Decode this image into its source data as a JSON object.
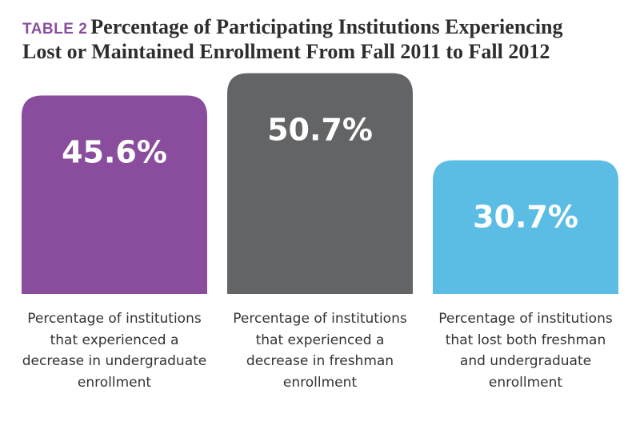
{
  "header": {
    "tag": "TABLE 2",
    "title_line1": "Percentage of Participating Institutions Experiencing",
    "title_line2": "Lost or Maintained Enrollment From Fall 2011 to Fall 2012"
  },
  "colors": {
    "tag": "#8a4d9e",
    "bar1": "#8a4d9e",
    "bar2": "#636466",
    "bar3": "#5bbde4",
    "value_text": "#ffffff"
  },
  "chart_data": {
    "type": "bar",
    "title": "Percentage of Participating Institutions Experiencing Lost or Maintained Enrollment From Fall 2011 to Fall 2012",
    "categories": [
      "Percentage of institutions that experienced a decrease in undergraduate enrollment",
      "Percentage of institutions that experienced a decrease in freshman enrollment",
      "Percentage of institutions that lost both freshman and undergraduate enrollment"
    ],
    "values": [
      45.6,
      50.7,
      30.7
    ],
    "value_labels": [
      "45.6%",
      "50.7%",
      "30.7%"
    ],
    "unit": "%",
    "grid": false,
    "legend": "none"
  }
}
